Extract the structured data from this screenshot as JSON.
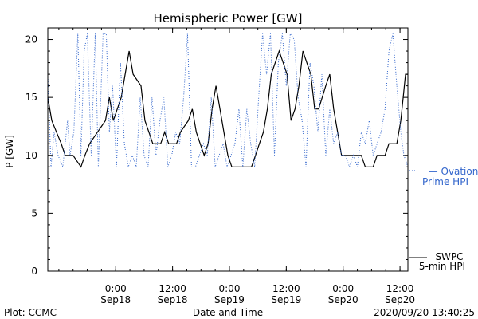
{
  "chart_data": {
    "type": "line",
    "title": "Hemispheric Power [GW]",
    "ylabel": "P [GW]",
    "xlabel": "Date and Time",
    "ylim": [
      0,
      21
    ],
    "xlim": [
      "2020-09-17T09:40",
      "2020-09-20T13:40"
    ],
    "y_ticks": [
      "0",
      "5",
      "10",
      "15",
      "20"
    ],
    "x_ticks": [
      {
        "time": "0:00",
        "date": "Sep18",
        "x": "2020-09-18T00:00"
      },
      {
        "time": "12:00",
        "date": "Sep18",
        "x": "2020-09-18T12:00"
      },
      {
        "time": "0:00",
        "date": "Sep19",
        "x": "2020-09-19T00:00"
      },
      {
        "time": "12:00",
        "date": "Sep19",
        "x": "2020-09-19T12:00"
      },
      {
        "time": "0:00",
        "date": "Sep20",
        "x": "2020-09-20T00:00"
      },
      {
        "time": "12:00",
        "date": "Sep20",
        "x": "2020-09-20T12:00"
      }
    ],
    "grid": false,
    "legend_position": "right",
    "series": [
      {
        "name": "SWPC 5-min HPI",
        "legend_line1": "SWPC",
        "legend_line2": "5-min HPI",
        "color": "#000000",
        "style": "solid",
        "points": [
          [
            "2020-09-17T09:40",
            15
          ],
          [
            "2020-09-17T10:30",
            13
          ],
          [
            "2020-09-17T11:30",
            12
          ],
          [
            "2020-09-17T12:30",
            11
          ],
          [
            "2020-09-17T13:20",
            10
          ],
          [
            "2020-09-17T15:00",
            10
          ],
          [
            "2020-09-17T16:40",
            9
          ],
          [
            "2020-09-17T17:30",
            10
          ],
          [
            "2020-09-17T18:30",
            11
          ],
          [
            "2020-09-17T20:10",
            12
          ],
          [
            "2020-09-17T21:50",
            13
          ],
          [
            "2020-09-17T22:40",
            15
          ],
          [
            "2020-09-17T23:30",
            13
          ],
          [
            "2020-09-18T01:10",
            15
          ],
          [
            "2020-09-18T02:00",
            17
          ],
          [
            "2020-09-18T02:50",
            19
          ],
          [
            "2020-09-18T03:40",
            17
          ],
          [
            "2020-09-18T05:20",
            16
          ],
          [
            "2020-09-18T06:10",
            13
          ],
          [
            "2020-09-18T07:00",
            12
          ],
          [
            "2020-09-18T07:50",
            11
          ],
          [
            "2020-09-18T09:30",
            11
          ],
          [
            "2020-09-18T10:20",
            12
          ],
          [
            "2020-09-18T11:10",
            11
          ],
          [
            "2020-09-18T12:50",
            11
          ],
          [
            "2020-09-18T13:40",
            12
          ],
          [
            "2020-09-18T15:20",
            13
          ],
          [
            "2020-09-18T16:10",
            14
          ],
          [
            "2020-09-18T17:00",
            12
          ],
          [
            "2020-09-18T17:50",
            11
          ],
          [
            "2020-09-18T18:40",
            10
          ],
          [
            "2020-09-18T19:30",
            11
          ],
          [
            "2020-09-18T20:20",
            14
          ],
          [
            "2020-09-18T21:10",
            16
          ],
          [
            "2020-09-18T22:00",
            14
          ],
          [
            "2020-09-18T23:40",
            10
          ],
          [
            "2020-09-19T00:30",
            9
          ],
          [
            "2020-09-19T04:40",
            9
          ],
          [
            "2020-09-19T05:30",
            10
          ],
          [
            "2020-09-19T06:20",
            11
          ],
          [
            "2020-09-19T07:10",
            12
          ],
          [
            "2020-09-19T08:00",
            14
          ],
          [
            "2020-09-19T08:50",
            17
          ],
          [
            "2020-09-19T09:40",
            18
          ],
          [
            "2020-09-19T10:30",
            19
          ],
          [
            "2020-09-19T11:20",
            18
          ],
          [
            "2020-09-19T12:10",
            17
          ],
          [
            "2020-09-19T13:00",
            13
          ],
          [
            "2020-09-19T13:50",
            14
          ],
          [
            "2020-09-19T14:40",
            16
          ],
          [
            "2020-09-19T15:30",
            19
          ],
          [
            "2020-09-19T16:20",
            18
          ],
          [
            "2020-09-19T17:10",
            17
          ],
          [
            "2020-09-19T18:00",
            14
          ],
          [
            "2020-09-19T18:50",
            14
          ],
          [
            "2020-09-19T20:20",
            16
          ],
          [
            "2020-09-19T21:10",
            17
          ],
          [
            "2020-09-19T22:00",
            14
          ],
          [
            "2020-09-19T22:50",
            12
          ],
          [
            "2020-09-19T23:40",
            10
          ],
          [
            "2020-09-20T03:50",
            10
          ],
          [
            "2020-09-20T04:40",
            9
          ],
          [
            "2020-09-20T06:20",
            9
          ],
          [
            "2020-09-20T07:10",
            10
          ],
          [
            "2020-09-20T08:50",
            10
          ],
          [
            "2020-09-20T09:40",
            11
          ],
          [
            "2020-09-20T11:20",
            11
          ],
          [
            "2020-09-20T12:10",
            13
          ],
          [
            "2020-09-20T12:40",
            15
          ],
          [
            "2020-09-20T13:10",
            17
          ],
          [
            "2020-09-20T13:40",
            17
          ]
        ]
      },
      {
        "name": "Ovation Prime HPI",
        "legend_line1": "— Ovation",
        "legend_line2": "Prime HPI",
        "color": "#3366cc",
        "style": "dotted",
        "points": [
          [
            "2020-09-17T09:40",
            17
          ],
          [
            "2020-09-17T10:20",
            9
          ],
          [
            "2020-09-17T11:00",
            12
          ],
          [
            "2020-09-17T11:50",
            10
          ],
          [
            "2020-09-17T12:50",
            9
          ],
          [
            "2020-09-17T13:50",
            13
          ],
          [
            "2020-09-17T14:20",
            10
          ],
          [
            "2020-09-17T15:10",
            12
          ],
          [
            "2020-09-17T16:00",
            20.5
          ],
          [
            "2020-09-17T16:40",
            10
          ],
          [
            "2020-09-17T17:20",
            19
          ],
          [
            "2020-09-17T18:00",
            20.5
          ],
          [
            "2020-09-17T18:50",
            10
          ],
          [
            "2020-09-17T19:40",
            20.5
          ],
          [
            "2020-09-17T20:20",
            9
          ],
          [
            "2020-09-17T21:20",
            20.5
          ],
          [
            "2020-09-17T22:00",
            20.5
          ],
          [
            "2020-09-17T22:40",
            12
          ],
          [
            "2020-09-17T23:20",
            16
          ],
          [
            "2020-09-18T00:10",
            9
          ],
          [
            "2020-09-18T01:00",
            18
          ],
          [
            "2020-09-18T01:50",
            11
          ],
          [
            "2020-09-18T02:40",
            9
          ],
          [
            "2020-09-18T03:30",
            10
          ],
          [
            "2020-09-18T04:20",
            9
          ],
          [
            "2020-09-18T05:10",
            15
          ],
          [
            "2020-09-18T06:00",
            10
          ],
          [
            "2020-09-18T06:50",
            9
          ],
          [
            "2020-09-18T07:40",
            15
          ],
          [
            "2020-09-18T08:30",
            10
          ],
          [
            "2020-09-18T09:20",
            13
          ],
          [
            "2020-09-18T10:10",
            15
          ],
          [
            "2020-09-18T11:00",
            9
          ],
          [
            "2020-09-18T11:50",
            10
          ],
          [
            "2020-09-18T12:40",
            12
          ],
          [
            "2020-09-18T13:30",
            11
          ],
          [
            "2020-09-18T14:20",
            15
          ],
          [
            "2020-09-18T15:10",
            20.5
          ],
          [
            "2020-09-18T16:00",
            9
          ],
          [
            "2020-09-18T16:50",
            9
          ],
          [
            "2020-09-18T17:40",
            10
          ],
          [
            "2020-09-18T18:30",
            11
          ],
          [
            "2020-09-18T19:20",
            10
          ],
          [
            "2020-09-18T20:10",
            15
          ],
          [
            "2020-09-18T21:00",
            9
          ],
          [
            "2020-09-18T21:50",
            10
          ],
          [
            "2020-09-18T22:40",
            11
          ],
          [
            "2020-09-18T23:30",
            9
          ],
          [
            "2020-09-19T00:20",
            10
          ],
          [
            "2020-09-19T01:10",
            11
          ],
          [
            "2020-09-19T02:00",
            14
          ],
          [
            "2020-09-19T02:50",
            9
          ],
          [
            "2020-09-19T03:40",
            14
          ],
          [
            "2020-09-19T04:30",
            11
          ],
          [
            "2020-09-19T05:20",
            9
          ],
          [
            "2020-09-19T06:10",
            15
          ],
          [
            "2020-09-19T07:00",
            20.5
          ],
          [
            "2020-09-19T07:50",
            17
          ],
          [
            "2020-09-19T08:40",
            20.5
          ],
          [
            "2020-09-19T09:30",
            10
          ],
          [
            "2020-09-19T10:20",
            18
          ],
          [
            "2020-09-19T11:10",
            20.5
          ],
          [
            "2020-09-19T12:00",
            16
          ],
          [
            "2020-09-19T12:50",
            20.5
          ],
          [
            "2020-09-19T13:40",
            20
          ],
          [
            "2020-09-19T14:30",
            15
          ],
          [
            "2020-09-19T15:20",
            13
          ],
          [
            "2020-09-19T16:10",
            9
          ],
          [
            "2020-09-19T17:00",
            18
          ],
          [
            "2020-09-19T17:50",
            16
          ],
          [
            "2020-09-19T18:40",
            12
          ],
          [
            "2020-09-19T19:30",
            17
          ],
          [
            "2020-09-19T20:20",
            10
          ],
          [
            "2020-09-19T21:10",
            14
          ],
          [
            "2020-09-19T22:00",
            11
          ],
          [
            "2020-09-19T22:50",
            12
          ],
          [
            "2020-09-19T23:40",
            10
          ],
          [
            "2020-09-20T00:30",
            10
          ],
          [
            "2020-09-20T01:20",
            9
          ],
          [
            "2020-09-20T02:10",
            10
          ],
          [
            "2020-09-20T03:00",
            9
          ],
          [
            "2020-09-20T03:50",
            12
          ],
          [
            "2020-09-20T04:40",
            11
          ],
          [
            "2020-09-20T05:30",
            13
          ],
          [
            "2020-09-20T06:20",
            10
          ],
          [
            "2020-09-20T07:10",
            11
          ],
          [
            "2020-09-20T08:00",
            12
          ],
          [
            "2020-09-20T08:50",
            14
          ],
          [
            "2020-09-20T09:40",
            19
          ],
          [
            "2020-09-20T10:30",
            20.5
          ],
          [
            "2020-09-20T11:20",
            16
          ],
          [
            "2020-09-20T12:10",
            12
          ],
          [
            "2020-09-20T12:50",
            10
          ],
          [
            "2020-09-20T13:40",
            9
          ]
        ]
      }
    ]
  },
  "footer": {
    "left": "Plot: CCMC",
    "right": "2020/09/20 13:40:25"
  }
}
